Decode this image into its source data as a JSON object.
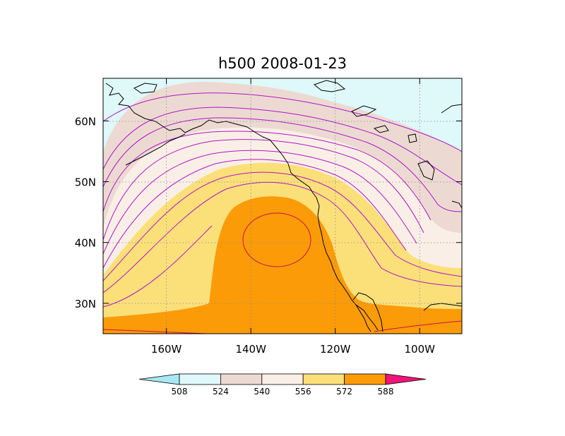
{
  "title": "h500 2008-01-23",
  "variable": "h500",
  "date": "2008-01-23",
  "map": {
    "lon_range": [
      -175,
      -90
    ],
    "lat_range": [
      25,
      67
    ],
    "x_ticks": [
      {
        "lon": -160,
        "label": "160W"
      },
      {
        "lon": -140,
        "label": "140W"
      },
      {
        "lon": -120,
        "label": "120W"
      },
      {
        "lon": -100,
        "label": "100W"
      }
    ],
    "y_ticks": [
      {
        "lat": 30,
        "label": "30N"
      },
      {
        "lat": 40,
        "label": "40N"
      },
      {
        "lat": 50,
        "label": "50N"
      },
      {
        "lat": 60,
        "label": "60N"
      }
    ],
    "grid": "dotted"
  },
  "colorbar": {
    "levels": [
      "508",
      "524",
      "540",
      "556",
      "572",
      "588"
    ],
    "colors": [
      "#a6e8f2",
      "#dff8fa",
      "#ecdad2",
      "#faefe6",
      "#fbe07a",
      "#fb9b08",
      "#f01478"
    ],
    "orientation": "horizontal",
    "ends": "triangular"
  },
  "contour_color": "#b015c8",
  "centre_contour_color": "#c81046"
}
